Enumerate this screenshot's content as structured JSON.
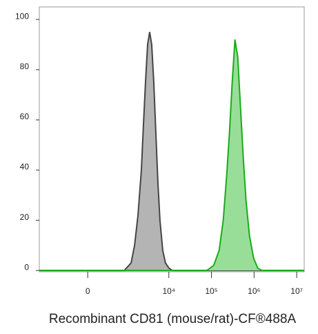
{
  "chart_data": {
    "type": "area",
    "x_label": "Recombinant CD81 (mouse/rat)-CF®488A",
    "xscale": "arcsinh",
    "xcofactor": 250,
    "xlim": [
      -1700,
      15000000
    ],
    "xticks": [
      0,
      {
        "value": 10000,
        "label": "10⁴"
      },
      {
        "value": 100000,
        "label": "10⁵"
      },
      {
        "value": 1000000,
        "label": "10⁶"
      },
      {
        "value": 10000000,
        "label": "10⁷"
      }
    ],
    "ylim": [
      -0.5,
      105
    ],
    "yticks": [
      0,
      20,
      40,
      60,
      80,
      100
    ],
    "series": [
      {
        "color": "#444444",
        "fill": "#b4b4b4",
        "x": [
          -1700,
          880,
          1290,
          1560,
          1880,
          2260,
          2530,
          2830,
          3170,
          3540,
          3960,
          4430,
          4950,
          5540,
          6190,
          7190,
          8340,
          10000,
          12100,
          15000000
        ],
        "values": [
          0,
          0,
          3,
          10,
          22,
          40,
          58,
          75,
          90,
          95,
          90,
          75,
          55,
          35,
          20,
          8,
          3,
          1,
          0,
          0
        ]
      },
      {
        "color": "#1aaa1a",
        "fill": "#98de98",
        "x": [
          -1700,
          77600,
          112600,
          151500,
          189000,
          228000,
          264600,
          307000,
          356000,
          413700,
          480000,
          557000,
          646000,
          778000,
          972000,
          1216000,
          1519000,
          15000000
        ],
        "values": [
          0,
          0,
          2,
          8,
          20,
          38,
          55,
          75,
          92,
          85,
          65,
          45,
          28,
          14,
          5,
          1,
          0,
          0
        ]
      }
    ]
  }
}
